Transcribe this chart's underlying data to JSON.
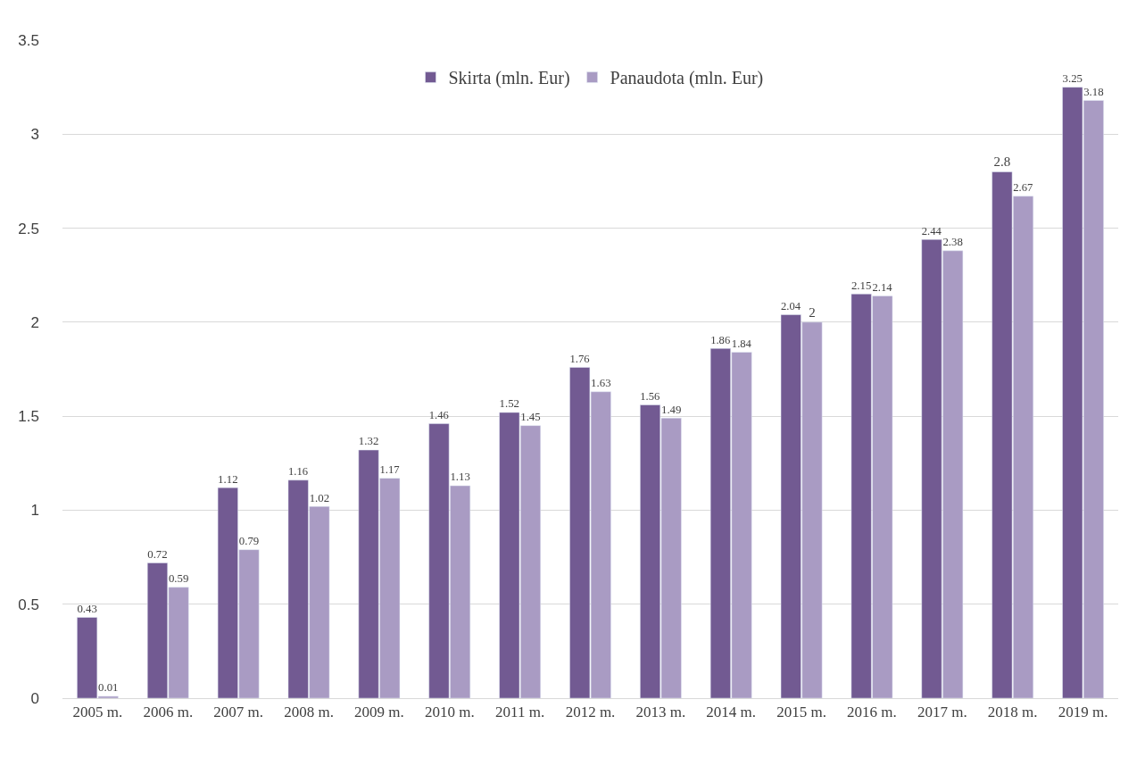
{
  "chart_data": {
    "type": "bar",
    "categories": [
      "2005 m.",
      "2006 m.",
      "2007 m.",
      "2008 m.",
      "2009 m.",
      "2010 m.",
      "2011 m.",
      "2012 m.",
      "2013 m.",
      "2014 m.",
      "2015 m.",
      "2016 m.",
      "2017 m.",
      "2018 m.",
      "2019 m."
    ],
    "series": [
      {
        "name": "Skirta (mln. Eur)",
        "color": "#725a92",
        "values": [
          0.43,
          0.72,
          1.12,
          1.16,
          1.32,
          1.46,
          1.52,
          1.76,
          1.56,
          1.86,
          2.04,
          2.15,
          2.44,
          2.8,
          3.25
        ]
      },
      {
        "name": "Panaudota (mln. Eur)",
        "color": "#a99bc3",
        "values": [
          0.01,
          0.59,
          0.79,
          1.02,
          1.17,
          1.13,
          1.45,
          1.63,
          1.49,
          1.84,
          2,
          2.14,
          2.38,
          2.67,
          3.18
        ]
      }
    ],
    "ylim": [
      0,
      3.5
    ],
    "yticks": [
      0,
      0.5,
      1,
      1.5,
      2,
      2.5,
      3,
      3.5
    ],
    "grid": "y",
    "legend": "top",
    "data_labels": true
  }
}
